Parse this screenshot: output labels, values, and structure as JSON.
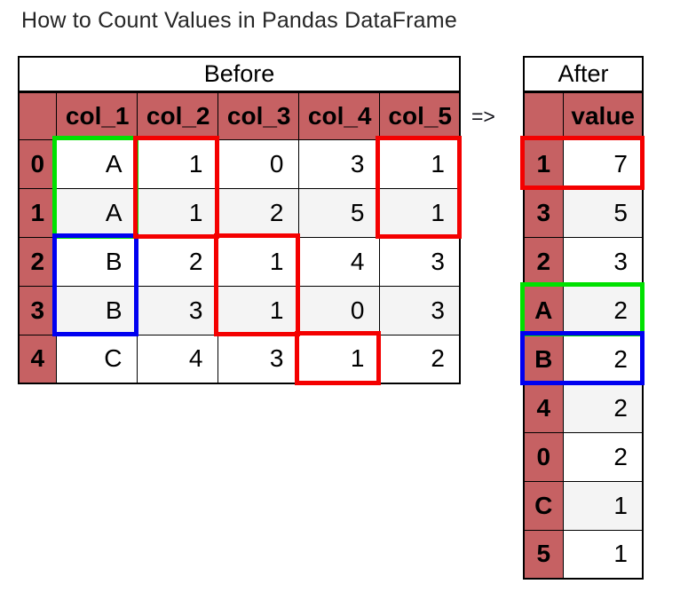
{
  "title": "How to Count Values in Pandas DataFrame",
  "arrow_label": "=>",
  "colors": {
    "header_bg": "#c66163",
    "alt_row_bg": "#f4f4f4",
    "table_border": "#000000",
    "title_color": "#262626",
    "highlight_red": "#f40000",
    "highlight_green": "#00e100",
    "highlight_blue": "#0000f0"
  },
  "before_table": {
    "caption": "Before",
    "index_header": "",
    "columns": [
      "col_1",
      "col_2",
      "col_3",
      "col_4",
      "col_5"
    ],
    "rows": [
      {
        "index": "0",
        "values": [
          "A",
          "1",
          "0",
          "3",
          "1"
        ]
      },
      {
        "index": "1",
        "values": [
          "A",
          "1",
          "2",
          "5",
          "1"
        ]
      },
      {
        "index": "2",
        "values": [
          "B",
          "2",
          "1",
          "4",
          "3"
        ]
      },
      {
        "index": "3",
        "values": [
          "B",
          "3",
          "1",
          "0",
          "3"
        ]
      },
      {
        "index": "4",
        "values": [
          "C",
          "4",
          "3",
          "1",
          "2"
        ]
      }
    ]
  },
  "after_table": {
    "caption": "After",
    "index_header": "",
    "columns": [
      "value"
    ],
    "rows": [
      {
        "index": "1",
        "values": [
          "7"
        ]
      },
      {
        "index": "3",
        "values": [
          "5"
        ]
      },
      {
        "index": "2",
        "values": [
          "3"
        ]
      },
      {
        "index": "A",
        "values": [
          "2"
        ]
      },
      {
        "index": "B",
        "values": [
          "2"
        ]
      },
      {
        "index": "4",
        "values": [
          "2"
        ]
      },
      {
        "index": "0",
        "values": [
          "2"
        ]
      },
      {
        "index": "C",
        "values": [
          "1"
        ]
      },
      {
        "index": "5",
        "values": [
          "1"
        ]
      }
    ]
  },
  "highlights": {
    "before": [
      {
        "color": "green",
        "column": "col_1",
        "rows": [
          0,
          1
        ]
      },
      {
        "color": "blue",
        "column": "col_1",
        "rows": [
          2,
          3
        ]
      },
      {
        "color": "red",
        "column": "col_2",
        "rows": [
          0,
          1
        ]
      },
      {
        "color": "red",
        "column": "col_3",
        "rows": [
          2,
          3
        ]
      },
      {
        "color": "red",
        "column": "col_4",
        "rows": [
          4,
          4
        ]
      },
      {
        "color": "red",
        "column": "col_5",
        "rows": [
          0,
          1
        ]
      }
    ],
    "after": [
      {
        "color": "red",
        "index": "1"
      },
      {
        "color": "green",
        "index": "A"
      },
      {
        "color": "blue",
        "index": "B"
      }
    ]
  }
}
